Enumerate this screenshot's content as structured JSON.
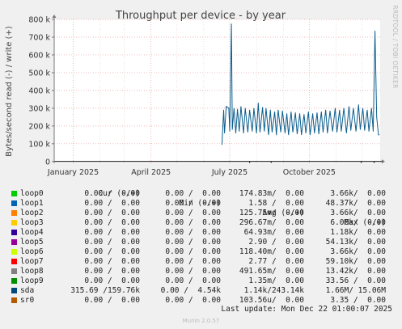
{
  "chart_data": {
    "type": "line",
    "title": "Throughput per device - by year",
    "ylabel": "Bytes/second read (-) / write (+)",
    "watermark": "RRDTOOL / TOBI OETIKER",
    "y_ticks": [
      {
        "value": 0,
        "label": "0"
      },
      {
        "value": 100000,
        "label": "100 k"
      },
      {
        "value": 200000,
        "label": "200 k"
      },
      {
        "value": 300000,
        "label": "300 k"
      },
      {
        "value": 400000,
        "label": "400 k"
      },
      {
        "value": 500000,
        "label": "500 k"
      },
      {
        "value": 600000,
        "label": "600 k"
      },
      {
        "value": 700000,
        "label": "700 k"
      },
      {
        "value": 800000,
        "label": "800 k"
      }
    ],
    "ylim": [
      -10000,
      800000
    ],
    "x_ticks": [
      {
        "date": "2025-01-01",
        "label": "January 2025"
      },
      {
        "date": "2025-04-01",
        "label": "April 2025"
      },
      {
        "date": "2025-07-01",
        "label": "July 2025"
      },
      {
        "date": "2025-10-01",
        "label": "October 2025"
      }
    ],
    "xlim": [
      "2024-12-10",
      "2025-12-22"
    ],
    "grid": true,
    "series": [
      {
        "name": "sda",
        "color": "#0b5e8e",
        "points": [
          [
            "2025-06-22",
            95000
          ],
          [
            "2025-06-24",
            290000
          ],
          [
            "2025-06-25",
            160000
          ],
          [
            "2025-06-27",
            310000
          ],
          [
            "2025-06-30",
            300000
          ],
          [
            "2025-07-01",
            170000
          ],
          [
            "2025-07-03",
            775000
          ],
          [
            "2025-07-04",
            180000
          ],
          [
            "2025-07-06",
            300000
          ],
          [
            "2025-07-08",
            160000
          ],
          [
            "2025-07-10",
            295000
          ],
          [
            "2025-07-12",
            170000
          ],
          [
            "2025-07-14",
            310000
          ],
          [
            "2025-07-17",
            160000
          ],
          [
            "2025-07-19",
            300000
          ],
          [
            "2025-07-22",
            165000
          ],
          [
            "2025-07-24",
            290000
          ],
          [
            "2025-07-27",
            170000
          ],
          [
            "2025-07-29",
            300000
          ],
          [
            "2025-08-01",
            160000
          ],
          [
            "2025-08-03",
            330000
          ],
          [
            "2025-08-05",
            165000
          ],
          [
            "2025-08-08",
            305000
          ],
          [
            "2025-08-10",
            170000
          ],
          [
            "2025-08-12",
            300000
          ],
          [
            "2025-08-15",
            150000
          ],
          [
            "2025-08-17",
            290000
          ],
          [
            "2025-08-19",
            165000
          ],
          [
            "2025-08-22",
            280000
          ],
          [
            "2025-08-24",
            150000
          ],
          [
            "2025-08-26",
            290000
          ],
          [
            "2025-08-29",
            165000
          ],
          [
            "2025-08-31",
            285000
          ],
          [
            "2025-09-03",
            160000
          ],
          [
            "2025-09-05",
            270000
          ],
          [
            "2025-09-07",
            150000
          ],
          [
            "2025-09-10",
            280000
          ],
          [
            "2025-09-12",
            165000
          ],
          [
            "2025-09-15",
            275000
          ],
          [
            "2025-09-17",
            155000
          ],
          [
            "2025-09-20",
            270000
          ],
          [
            "2025-09-22",
            150000
          ],
          [
            "2025-09-25",
            265000
          ],
          [
            "2025-09-27",
            160000
          ],
          [
            "2025-09-30",
            280000
          ],
          [
            "2025-10-02",
            150000
          ],
          [
            "2025-10-05",
            270000
          ],
          [
            "2025-10-07",
            160000
          ],
          [
            "2025-10-10",
            275000
          ],
          [
            "2025-10-12",
            155000
          ],
          [
            "2025-10-15",
            280000
          ],
          [
            "2025-10-17",
            165000
          ],
          [
            "2025-10-20",
            290000
          ],
          [
            "2025-10-22",
            160000
          ],
          [
            "2025-10-25",
            285000
          ],
          [
            "2025-10-28",
            170000
          ],
          [
            "2025-10-31",
            300000
          ],
          [
            "2025-11-02",
            165000
          ],
          [
            "2025-11-05",
            290000
          ],
          [
            "2025-11-07",
            170000
          ],
          [
            "2025-11-10",
            300000
          ],
          [
            "2025-11-13",
            160000
          ],
          [
            "2025-11-16",
            310000
          ],
          [
            "2025-11-18",
            175000
          ],
          [
            "2025-11-21",
            300000
          ],
          [
            "2025-11-24",
            170000
          ],
          [
            "2025-11-27",
            320000
          ],
          [
            "2025-11-29",
            180000
          ],
          [
            "2025-12-02",
            300000
          ],
          [
            "2025-12-04",
            175000
          ],
          [
            "2025-12-07",
            290000
          ],
          [
            "2025-12-09",
            170000
          ],
          [
            "2025-12-12",
            300000
          ],
          [
            "2025-12-14",
            170000
          ],
          [
            "2025-12-16",
            735000
          ],
          [
            "2025-12-18",
            250000
          ],
          [
            "2025-12-20",
            150000
          ],
          [
            "2025-12-21",
            150000
          ]
        ],
        "read_points": [
          [
            "2025-07-24",
            -3000
          ],
          [
            "2025-08-18",
            -2500
          ],
          [
            "2025-11-30",
            -2500
          ],
          [
            "2025-12-15",
            -3000
          ]
        ]
      }
    ]
  },
  "legend": {
    "headers": {
      "cur": "Cur (-/+)",
      "min": "Min (-/+)",
      "avg": "Avg (-/+)",
      "max": "Max (-/+)"
    },
    "rows": [
      {
        "name": "loop0",
        "color": "#00cc00",
        "cur": "0.00 /  0.00",
        "min": "0.00 /  0.00",
        "avg": "174.83m/  0.00",
        "max": "3.66k/  0.00"
      },
      {
        "name": "loop1",
        "color": "#0066b3",
        "cur": "0.00 /  0.00",
        "min": "0.00 /  0.00",
        "avg": "1.58 /  0.00",
        "max": "48.37k/  0.00"
      },
      {
        "name": "loop2",
        "color": "#ff8000",
        "cur": "0.00 /  0.00",
        "min": "0.00 /  0.00",
        "avg": "125.75m/  0.00",
        "max": "3.66k/  0.00"
      },
      {
        "name": "loop3",
        "color": "#ffcc00",
        "cur": "0.00 /  0.00",
        "min": "0.00 /  0.00",
        "avg": "296.67m/  0.00",
        "max": "6.06k/  0.00"
      },
      {
        "name": "loop4",
        "color": "#330099",
        "cur": "0.00 /  0.00",
        "min": "0.00 /  0.00",
        "avg": "64.93m/  0.00",
        "max": "1.18k/  0.00"
      },
      {
        "name": "loop5",
        "color": "#990099",
        "cur": "0.00 /  0.00",
        "min": "0.00 /  0.00",
        "avg": "2.90 /  0.00",
        "max": "54.13k/  0.00"
      },
      {
        "name": "loop6",
        "color": "#ccff00",
        "cur": "0.00 /  0.00",
        "min": "0.00 /  0.00",
        "avg": "118.40m/  0.00",
        "max": "3.66k/  0.00"
      },
      {
        "name": "loop7",
        "color": "#ff0000",
        "cur": "0.00 /  0.00",
        "min": "0.00 /  0.00",
        "avg": "2.77 /  0.00",
        "max": "59.10k/  0.00"
      },
      {
        "name": "loop8",
        "color": "#808080",
        "cur": "0.00 /  0.00",
        "min": "0.00 /  0.00",
        "avg": "491.65m/  0.00",
        "max": "13.42k/  0.00"
      },
      {
        "name": "loop9",
        "color": "#008f00",
        "cur": "0.00 /  0.00",
        "min": "0.00 /  0.00",
        "avg": "1.35m/  0.00",
        "max": "33.56 /  0.00"
      },
      {
        "name": "sda",
        "color": "#00487d",
        "cur": "315.69 /159.76k",
        "min": "0.00 /  4.54k",
        "avg": "1.14k/243.14k",
        "max": "1.66M/ 15.06M"
      },
      {
        "name": "sr0",
        "color": "#b35a00",
        "cur": "0.00 /  0.00",
        "min": "0.00 /  0.00",
        "avg": "103.56u/  0.00",
        "max": "3.35 /  0.00"
      }
    ]
  },
  "footer": "Last update: Mon Dec 22 01:00:07 2025",
  "version": "Munin 2.0.57"
}
